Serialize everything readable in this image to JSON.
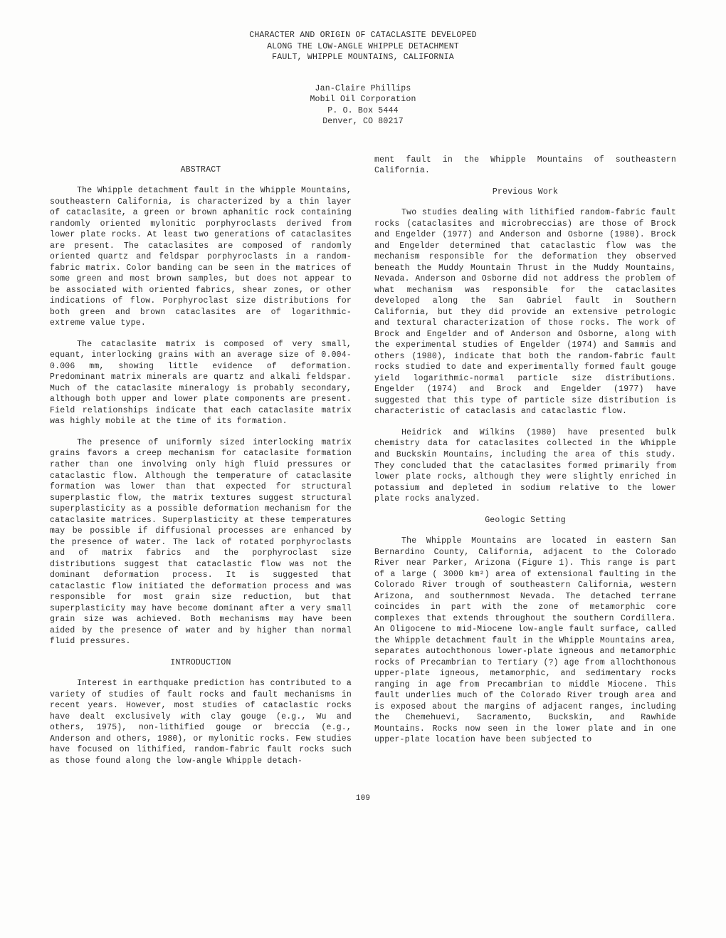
{
  "title": {
    "line1": "CHARACTER AND ORIGIN OF CATACLASITE DEVELOPED",
    "line2": "ALONG THE LOW-ANGLE WHIPPLE DETACHMENT",
    "line3": "FAULT, WHIPPLE MOUNTAINS, CALIFORNIA"
  },
  "author": {
    "name": "Jan-Claire Phillips",
    "org": "Mobil Oil Corporation",
    "addr1": "P. O. Box 5444",
    "addr2": "Denver, CO  80217"
  },
  "left": {
    "abstract_head": "ABSTRACT",
    "p1": "The Whipple detachment fault in the Whipple Mountains, southeastern California, is characterized by a thin layer of cataclasite, a green or brown aphanitic rock containing randomly oriented mylonitic porphyroclasts derived from lower plate rocks. At least two generations of cataclasites are present.  The cataclasites are composed of randomly oriented quartz and feldspar porphyroclasts in a random-fabric matrix.  Color banding can be seen in the matrices of some green and most brown samples, but does not appear to be associated with oriented fabrics, shear zones, or other indications of flow. Porphyroclast size distributions for both green and brown cataclasites are of logarithmic-extreme value type.",
    "p2": "The cataclasite matrix is composed of very small, equant, interlocking grains with an average size of 0.004-0.006 mm, showing little evidence of deformation.  Predominant matrix minerals are quartz and alkali feldspar.  Much of the cataclasite mineralogy is probably secondary, although both upper and lower plate components are present.  Field relationships indicate that each cataclasite matrix was highly mobile at the time of its formation.",
    "p3": "The presence of uniformly sized interlocking matrix grains favors a creep mechanism for cataclasite formation rather than one involving only high fluid pressures or cataclastic flow.  Although the temperature of cataclasite formation was lower than that expected for structural superplastic flow, the matrix textures suggest structural superplasticity as a possible deformation mechanism for the cataclasite matrices.  Superplasticity at these temperatures may be possible if diffusional processes are enhanced by the presence of water. The lack of rotated porphyroclasts and of matrix fabrics and the porphyroclast size distributions suggest that cataclastic flow was not the dominant deformation process.  It is suggested that cataclastic flow initiated the deformation process and was responsible for most grain size reduction, but that superplasticity may have become dominant after a very small grain size was achieved.  Both mechanisms may have been aided by the presence of water and by higher than normal fluid pressures.",
    "intro_head": "INTRODUCTION",
    "p4": "Interest in earthquake prediction has contributed to a variety of studies of fault rocks and fault mechanisms in recent years.  However, most studies of cataclastic rocks have dealt exclusively with clay gouge (e.g., Wu and others, 1975), non-lithified gouge or breccia (e.g., Anderson and others, 1980), or mylonitic rocks.  Few studies have focused on lithified, random-fabric fault rocks such as those found along the low-angle Whipple detach-"
  },
  "right": {
    "p1": "ment fault in the Whipple Mountains of southeastern California.",
    "prev_head": "Previous Work",
    "p2": "Two studies dealing with lithified random-fabric fault rocks (cataclasites and microbreccias) are those of Brock and Engelder (1977) and Anderson and Osborne (1980).  Brock and Engelder determined that cataclastic flow was the mechanism responsible for the deformation they observed beneath the Muddy Mountain Thrust in the Muddy Mountains, Nevada. Anderson and Osborne did not address the problem of what mechanism was responsible for the cataclasites developed along the San Gabriel fault in Southern California, but they did provide an extensive petrologic and textural characterization of those rocks.  The work of Brock and Engelder and of Anderson and Osborne, along with the experimental studies of Engelder (1974) and Sammis and others (1980), indicate that both the random-fabric fault rocks studied to date and experimentally formed fault gouge yield logarithmic-normal particle size distributions.  Engelder (1974) and Brock and Engelder (1977) have suggested that this type of particle size distribution is characteristic of cataclasis and cataclastic flow.",
    "p3": "Heidrick and Wilkins (1980) have presented bulk chemistry data for cataclasites collected in the Whipple and Buckskin Mountains, including the area of this study.  They concluded that the cataclasites formed primarily from lower plate rocks, although they were slightly enriched in potassium and depleted in sodium relative to the lower plate rocks analyzed.",
    "geo_head": "Geologic Setting",
    "p4": "The Whipple Mountains are located in eastern San Bernardino County, California, adjacent to the Colorado River near Parker, Arizona (Figure 1). This range is part of a large ( 3000 km²) area of extensional faulting in the Colorado River trough of southeastern California, western Arizona, and southernmost Nevada.  The detached terrane coincides in part with the zone of metamorphic core complexes that extends throughout the southern Cordillera.  An Oligocene to mid-Miocene low-angle fault surface, called the Whipple detachment fault in the Whipple Mountains area, separates autochthonous lower-plate igneous and metamorphic rocks of Precambrian to Tertiary (?) age from allochthonous upper-plate igneous, metamorphic, and sedimentary rocks ranging in age from Precambrian to middle Miocene.  This fault underlies much of the Colorado River trough area and is exposed about the margins of adjacent ranges, including the Chemehuevi, Sacramento, Buckskin, and Rawhide Mountains.  Rocks now seen in the lower plate and in one upper-plate location have been subjected to"
  },
  "page_number": "109"
}
